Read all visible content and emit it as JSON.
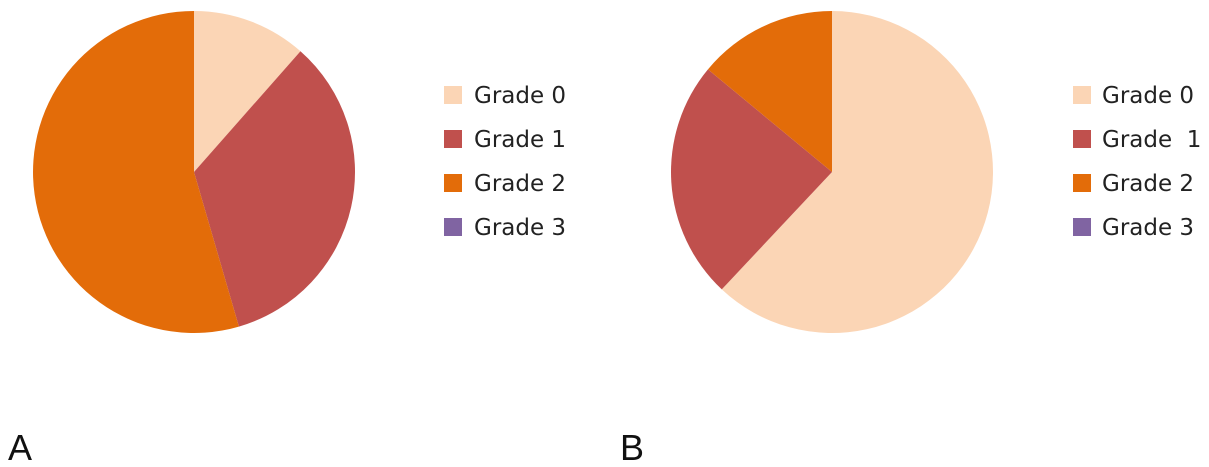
{
  "chart_data": [
    {
      "type": "pie",
      "panel_label": "A",
      "categories": [
        "Grade 0",
        "Grade 1",
        "Grade 2",
        "Grade 3"
      ],
      "values": [
        11.5,
        34,
        54.5,
        0
      ],
      "colors": [
        "#fbd5b5",
        "#c0504d",
        "#e36c09",
        "#8064a2"
      ],
      "legend": {
        "entries": [
          "Grade 0",
          "Grade 1",
          "Grade 2",
          "Grade 3"
        ],
        "position": "right"
      }
    },
    {
      "type": "pie",
      "panel_label": "B",
      "categories": [
        "Grade 0",
        "Grade  1",
        "Grade 2",
        "Grade 3"
      ],
      "values": [
        62,
        24,
        14,
        0
      ],
      "colors": [
        "#fbd5b5",
        "#c0504d",
        "#e36c09",
        "#8064a2"
      ],
      "legend": {
        "entries": [
          "Grade 0",
          "Grade  1",
          "Grade 2",
          "Grade 3"
        ],
        "position": "right"
      }
    }
  ]
}
